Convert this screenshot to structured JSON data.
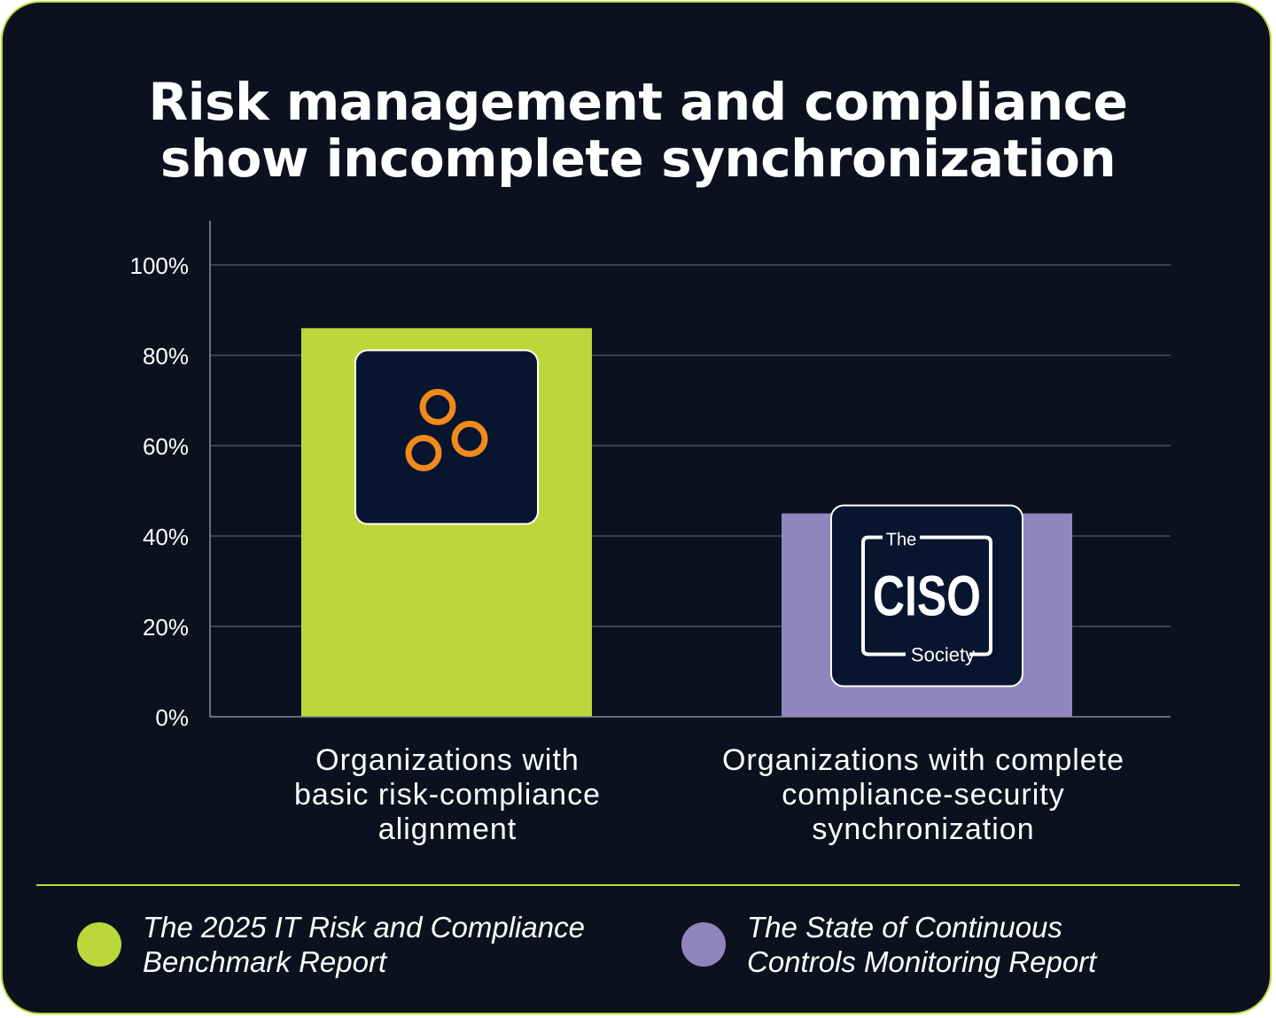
{
  "title": {
    "line1": "Risk management and compliance",
    "line2": "show incomplete synchronization"
  },
  "chart_data": {
    "type": "bar",
    "categories": [
      "Organizations with basic risk-compliance alignment",
      "Organizations with complete compliance-security synchronization"
    ],
    "category_lines": [
      [
        "Organizations with",
        "basic risk-compliance",
        "alignment"
      ],
      [
        "Organizations with complete",
        "compliance-security",
        "synchronization"
      ]
    ],
    "values": [
      86,
      45
    ],
    "ylim": [
      0,
      100
    ],
    "yticks": [
      0,
      20,
      40,
      60,
      80,
      100
    ],
    "ytick_labels": [
      "0%",
      "20%",
      "40%",
      "60%",
      "80%",
      "100%"
    ],
    "grid": true,
    "bar_colors": [
      "#bdd73a",
      "#9185c0"
    ],
    "bar_logos": [
      "three-rings-logo",
      "ciso-society-logo"
    ],
    "legend": [
      {
        "lines": [
          "The 2025 IT Risk and Compliance",
          "Benchmark Report"
        ],
        "color": "#bdd73a"
      },
      {
        "lines": [
          "The State of Continuous",
          "Controls Monitoring Report"
        ],
        "color": "#9185c0"
      }
    ]
  },
  "logos": {
    "ciso": {
      "top": "The",
      "main": "CISO",
      "bottom": "Society"
    }
  },
  "colors": {
    "background": "#0d111f",
    "accent": "#bdd73a",
    "purple": "#9185c0",
    "logo_bg": "#08152e",
    "orange": "#f08a1c"
  }
}
